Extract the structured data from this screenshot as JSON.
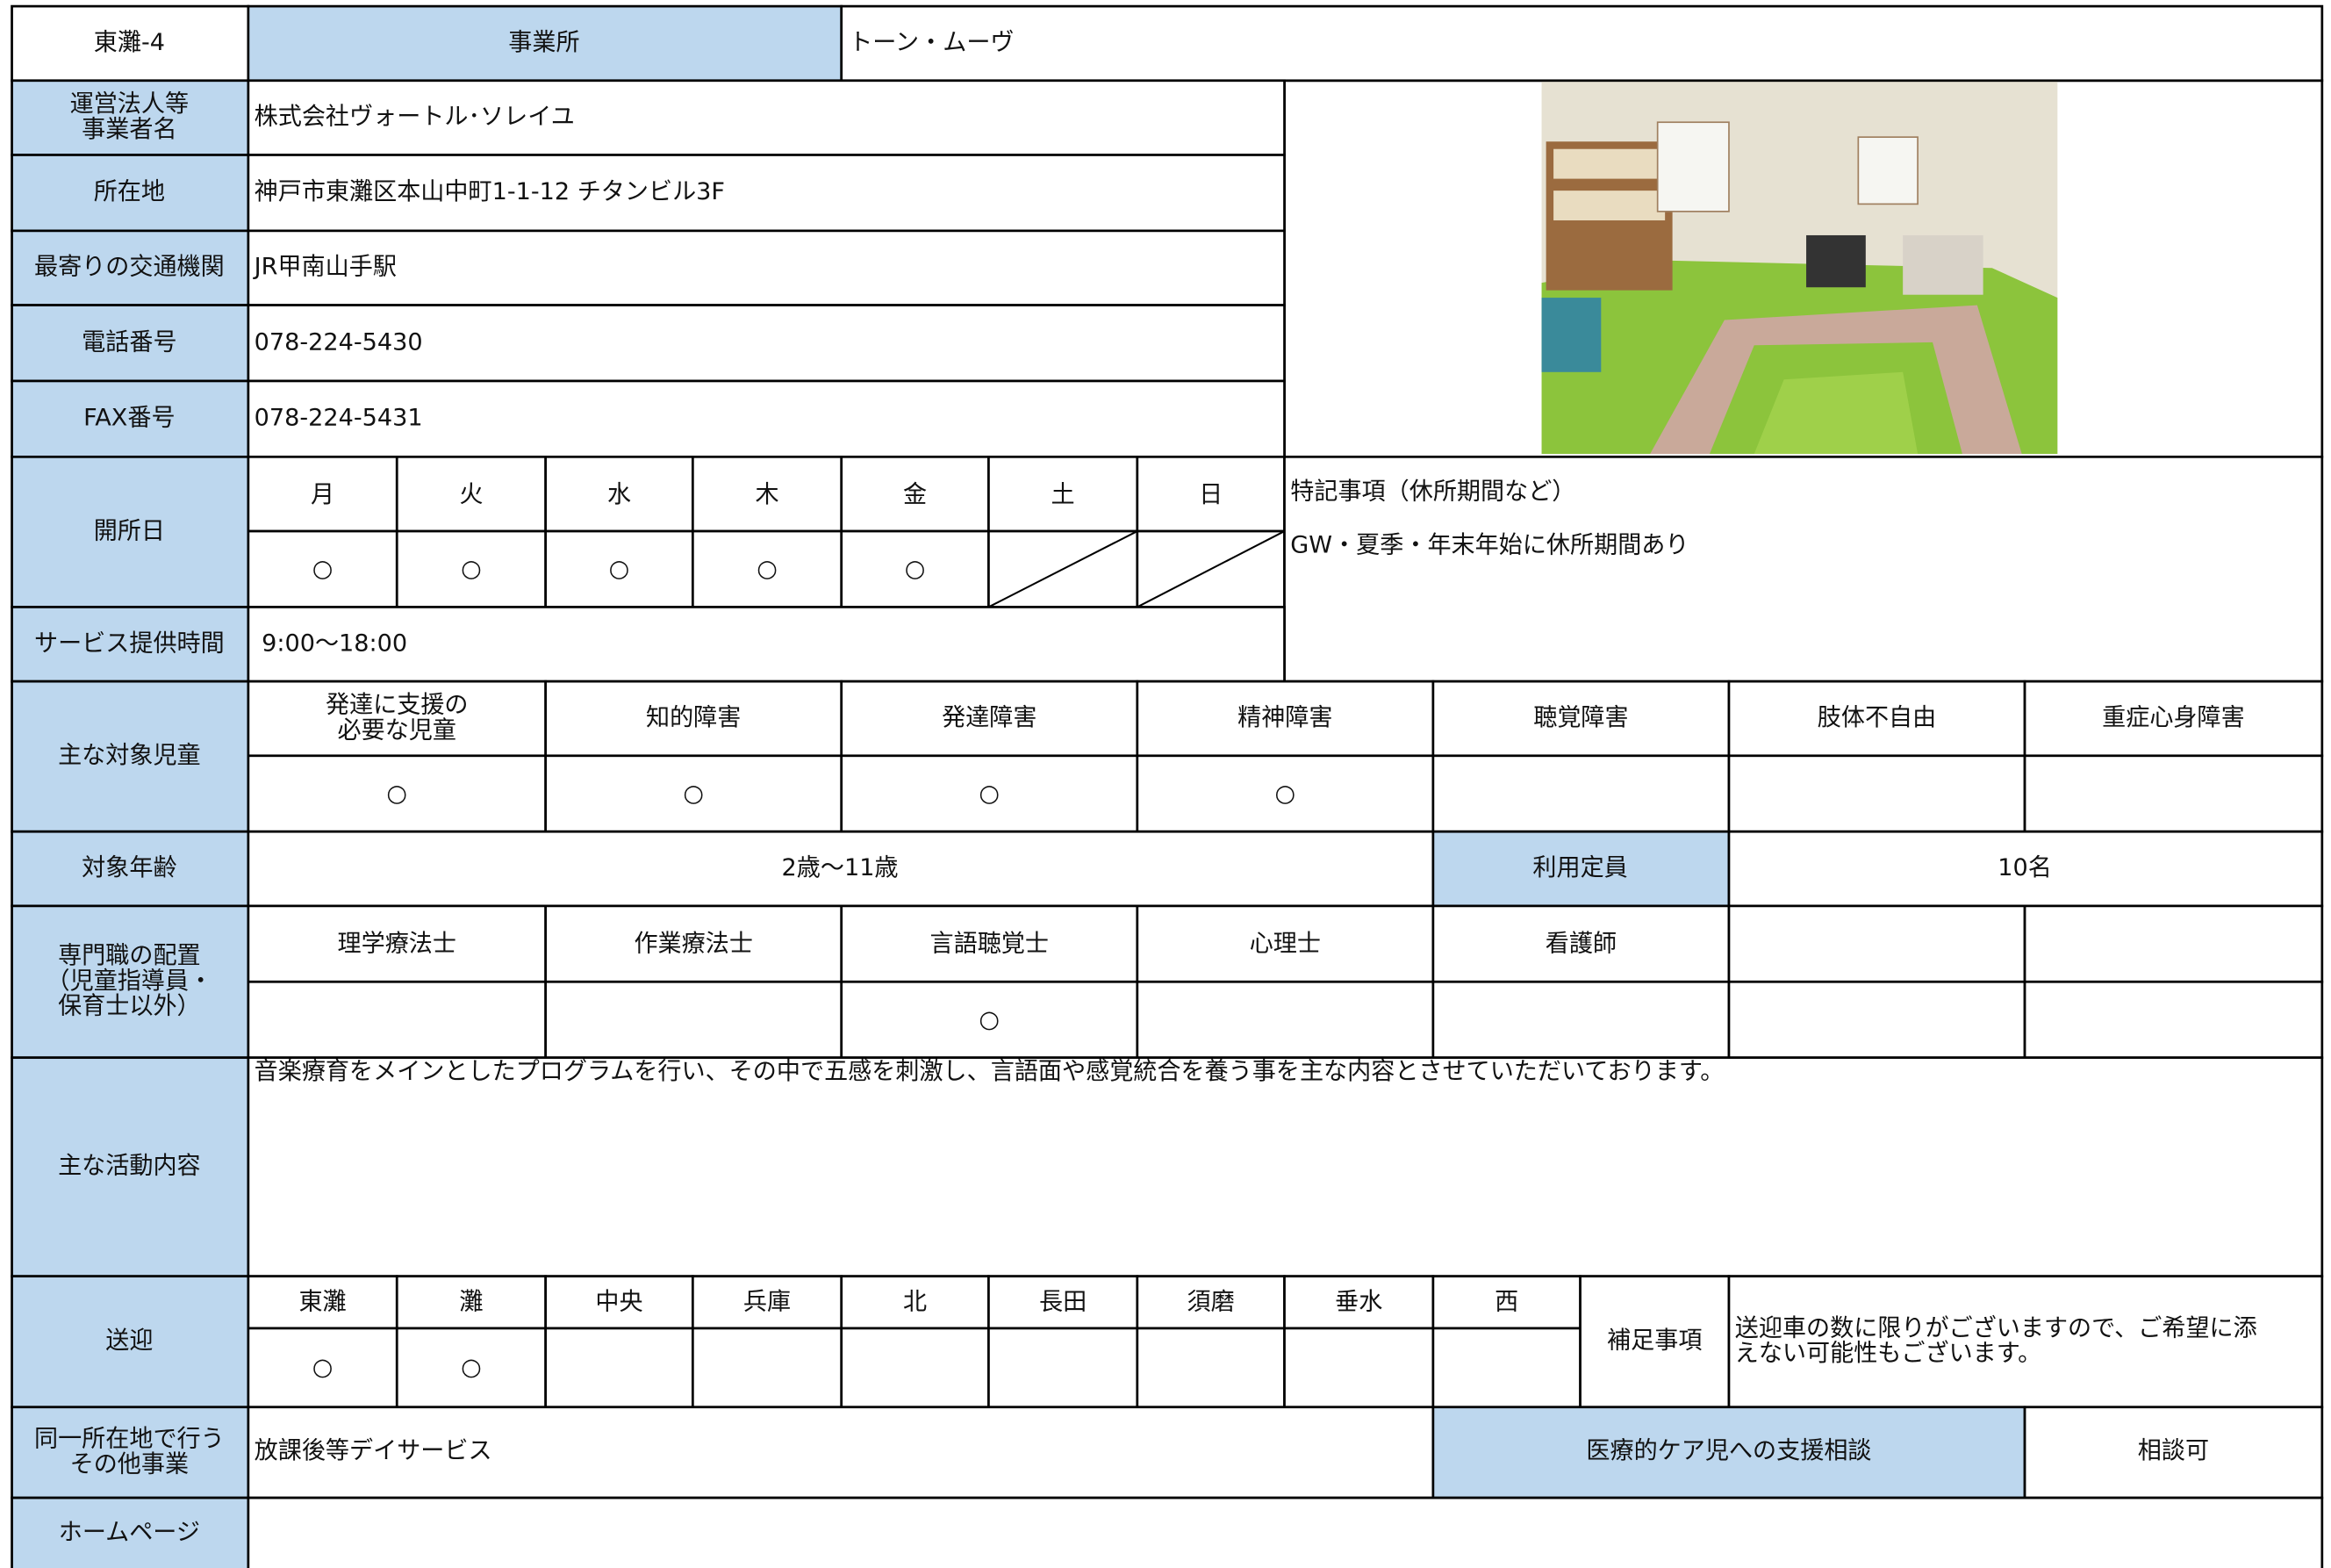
{
  "header": {
    "id": "東灘-4",
    "label": "事業所",
    "name": "トーン・ムーヴ"
  },
  "info": [
    {
      "label": [
        "運営法人等",
        "事業者名"
      ],
      "value": "株式会社ヴォートル･ソレイユ"
    },
    {
      "label": [
        "所在地"
      ],
      "value": "神戸市東灘区本山中町1-1-12 チタンビル3F"
    },
    {
      "label": [
        "最寄りの交通機関"
      ],
      "value": "JR甲南山手駅"
    },
    {
      "label": [
        "電話番号"
      ],
      "value": "078-224-5430"
    },
    {
      "label": [
        "FAX番号"
      ],
      "value": "078-224-5431"
    }
  ],
  "open_days": {
    "label": "開所日",
    "days": [
      "月",
      "火",
      "水",
      "木",
      "金",
      "土",
      "日"
    ],
    "marks": [
      "○",
      "○",
      "○",
      "○",
      "○",
      null,
      null
    ]
  },
  "notes": {
    "label": "特記事項（休所期間など）",
    "text": "GW・夏季・年末年始に休所期間あり"
  },
  "service_hours": {
    "label": "サービス提供時間",
    "value": "9:00～18:00"
  },
  "target_children": {
    "label": "主な対象児童",
    "categories": [
      [
        "発達に支援の",
        "必要な児童"
      ],
      [
        "知的障害"
      ],
      [
        "発達障害"
      ],
      [
        "精神障害"
      ],
      [
        "聴覚障害"
      ],
      [
        "肢体不自由"
      ],
      [
        "重症心身障害"
      ]
    ],
    "marks": [
      "○",
      "○",
      "○",
      "○",
      null,
      null,
      null
    ]
  },
  "age": {
    "label": "対象年齢",
    "value": "2歳～11歳"
  },
  "capacity": {
    "label": "利用定員",
    "value": "10名"
  },
  "specialists": {
    "label": [
      "専門職の配置",
      "（児童指導員・",
      "保育士以外）"
    ],
    "categories": [
      "理学療法士",
      "作業療法士",
      "言語聴覚士",
      "心理士",
      "看護師",
      null,
      null
    ],
    "marks": [
      null,
      null,
      "○",
      null,
      null,
      null,
      null
    ]
  },
  "activities": {
    "label": "主な活動内容",
    "text": "音楽療育をメインとしたプログラムを行い、その中で五感を刺激し、言語面や感覚統合を養う事を主な内容とさせていただいております。"
  },
  "transport": {
    "label": "送迎",
    "areas": [
      "東灘",
      "灘",
      "中央",
      "兵庫",
      "北",
      "長田",
      "須磨",
      "垂水",
      "西"
    ],
    "marks": [
      "○",
      "○",
      null,
      null,
      null,
      null,
      null,
      null,
      null
    ],
    "note_label": "補足事項",
    "note": [
      "送迎車の数に限りがございますので、ご希望に添",
      "えない可能性もございます。"
    ]
  },
  "other_services": {
    "label": [
      "同一所在地で行う",
      "その他事業"
    ],
    "value": "放課後等デイサービス"
  },
  "medical_care": {
    "label": "医療的ケア児への支援相談",
    "value": "相談可"
  },
  "homepage": {
    "label": "ホームページ"
  }
}
